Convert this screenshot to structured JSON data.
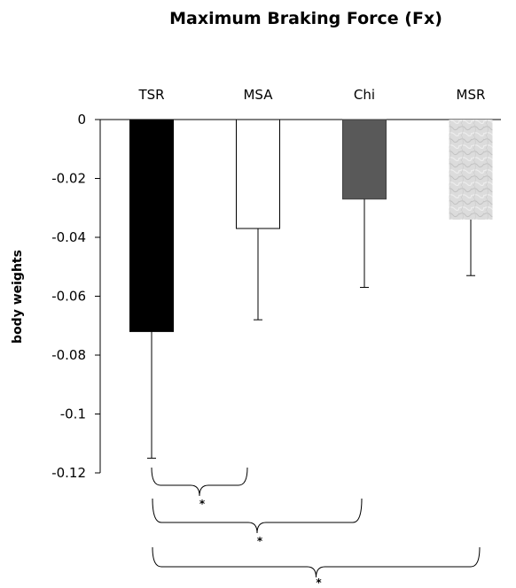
{
  "chart_data": {
    "type": "bar",
    "title": "Maximum Braking Force (Fx)",
    "xlabel": "",
    "ylabel": "body weights",
    "categories": [
      "TSR",
      "MSA",
      "Chi",
      "MSR"
    ],
    "values": [
      -0.072,
      -0.037,
      -0.027,
      -0.034
    ],
    "error_bars": [
      0.043,
      0.031,
      0.03,
      0.019
    ],
    "bar_styles": [
      "black",
      "white-outline",
      "dark-gray",
      "light-gray-texture"
    ],
    "ylim": [
      -0.12,
      0
    ],
    "yticks": [
      0,
      -0.02,
      -0.04,
      -0.06,
      -0.08,
      -0.1,
      -0.12
    ],
    "ytick_labels": [
      "0",
      "-0.02",
      "-0.04",
      "-0.06",
      "-0.08",
      "-0.1",
      "-0.12"
    ],
    "x_axis_position": "top",
    "grid": false,
    "legend": "none",
    "significance": [
      {
        "between": [
          "TSR",
          "MSA"
        ],
        "label": "*"
      },
      {
        "between": [
          "TSR",
          "Chi"
        ],
        "label": "*"
      },
      {
        "between": [
          "TSR",
          "MSR"
        ],
        "label": "*"
      }
    ]
  },
  "colors": {
    "tsr": "#000000",
    "msa": "#ffffff",
    "chi": "#595959",
    "msr": "#d9d9d9",
    "axis": "#000000"
  }
}
